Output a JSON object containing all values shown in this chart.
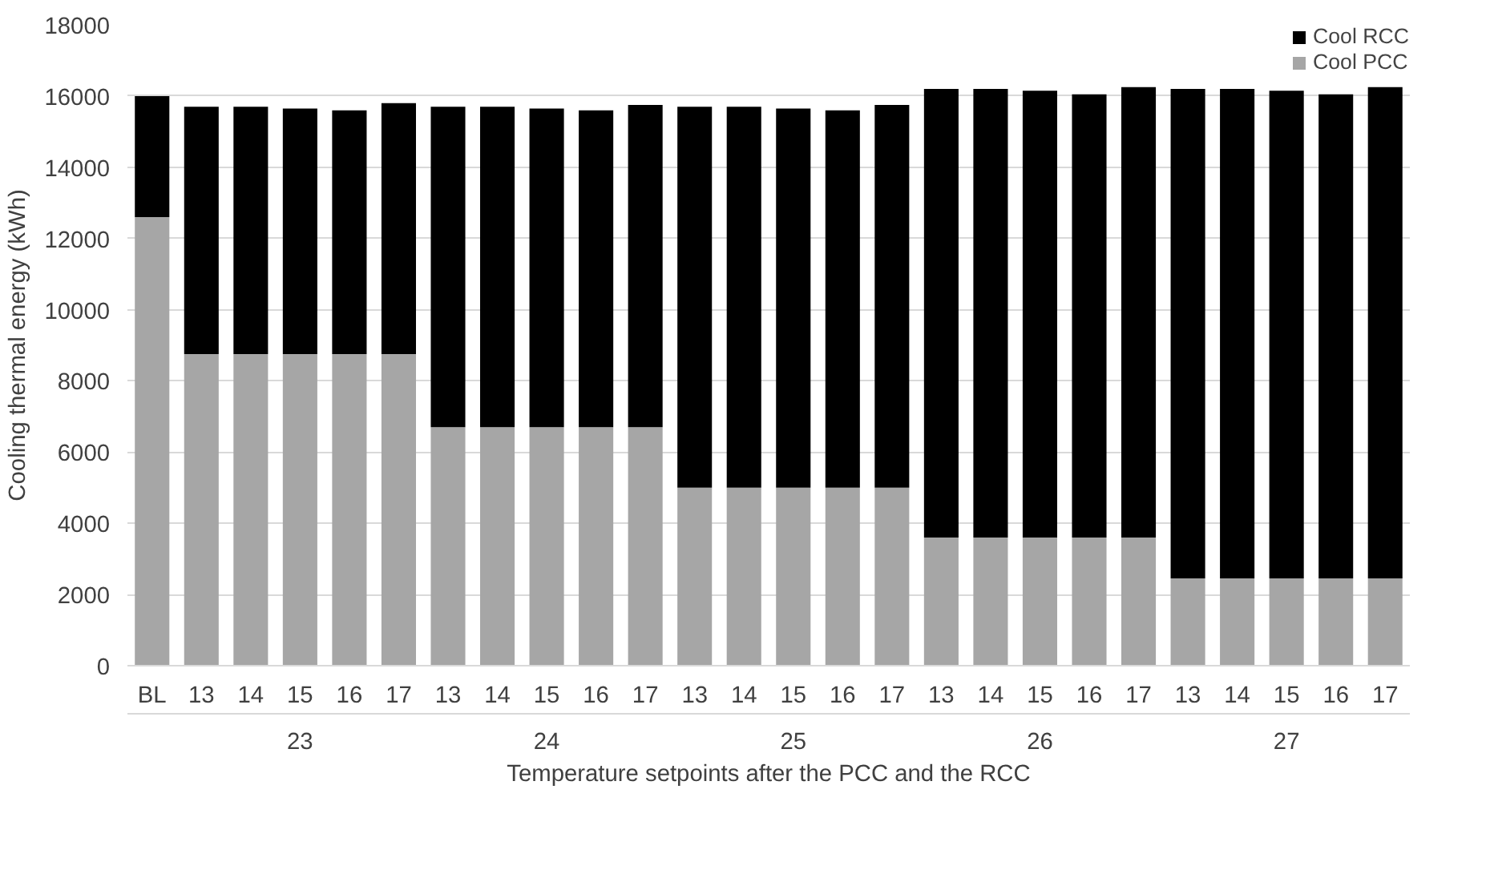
{
  "chart_data": {
    "type": "bar",
    "stacked": true,
    "ylabel": "Cooling thermal energy (kWh)",
    "xlabel": "Temperature setpoints after the PCC and the RCC",
    "categories": [
      "BL",
      "13",
      "14",
      "15",
      "16",
      "17",
      "13",
      "14",
      "15",
      "16",
      "17",
      "13",
      "14",
      "15",
      "16",
      "17",
      "13",
      "14",
      "15",
      "16",
      "17",
      "13",
      "14",
      "15",
      "16",
      "17"
    ],
    "annotations": [
      "23",
      "24",
      "25",
      "26",
      "27"
    ],
    "series": [
      {
        "name": "Cool PCC",
        "color": "#a6a6a6",
        "values": [
          12600,
          8750,
          8750,
          8750,
          8750,
          8750,
          6700,
          6700,
          6700,
          6700,
          6700,
          5000,
          5000,
          5000,
          5000,
          5000,
          3600,
          3600,
          3600,
          3600,
          3600,
          2450,
          2450,
          2450,
          2450,
          2450
        ]
      },
      {
        "name": "Cool RCC",
        "color": "#000000",
        "values": [
          3400,
          6950,
          6950,
          6900,
          6850,
          7050,
          9000,
          9000,
          8950,
          8900,
          9050,
          10700,
          10700,
          10650,
          10600,
          10750,
          12600,
          12600,
          12550,
          12450,
          12650,
          13750,
          13750,
          13700,
          13600,
          13800
        ]
      }
    ],
    "ylim": [
      0,
      18000
    ],
    "yticks": [
      0,
      2000,
      4000,
      6000,
      8000,
      10000,
      12000,
      14000,
      16000,
      18000
    ],
    "grid": "y",
    "legend": "top right"
  }
}
